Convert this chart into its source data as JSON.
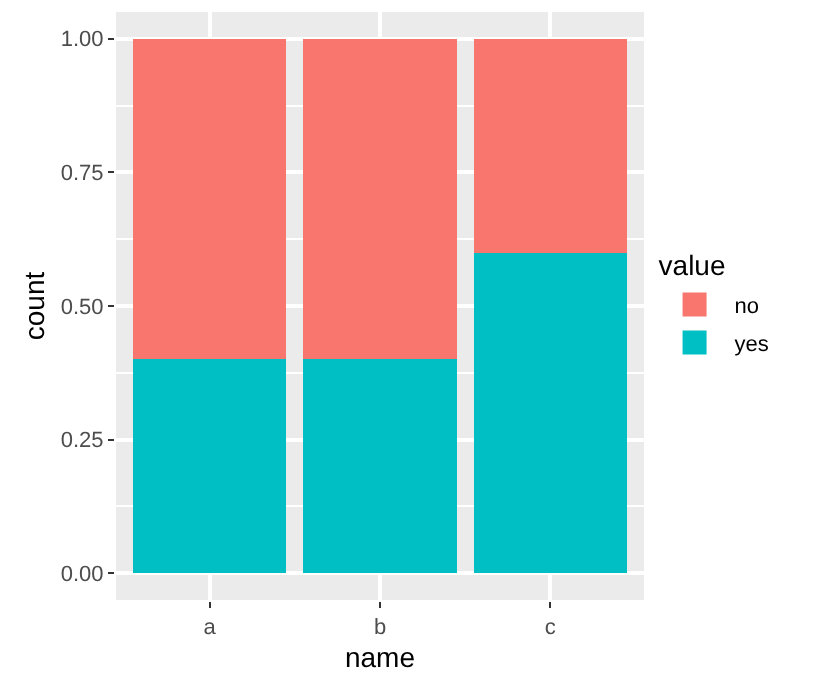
{
  "chart_data": {
    "type": "bar",
    "stacked": true,
    "xlabel": "name",
    "ylabel": "count",
    "legend_title": "value",
    "categories": [
      "a",
      "b",
      "c"
    ],
    "series": [
      {
        "name": "yes",
        "color": "#00bfc4",
        "values": [
          0.4,
          0.4,
          0.6
        ]
      },
      {
        "name": "no",
        "color": "#f8766d",
        "values": [
          0.6,
          0.6,
          0.4
        ]
      }
    ],
    "ylim": [
      -0.05,
      1.05
    ],
    "yticks": [
      {
        "value": 0,
        "label": "0.00"
      },
      {
        "value": 0.25,
        "label": "0.25"
      },
      {
        "value": 0.5,
        "label": "0.50"
      },
      {
        "value": 0.75,
        "label": "0.75"
      },
      {
        "value": 1,
        "label": "1.00"
      }
    ],
    "grid": true,
    "legend": "right"
  }
}
